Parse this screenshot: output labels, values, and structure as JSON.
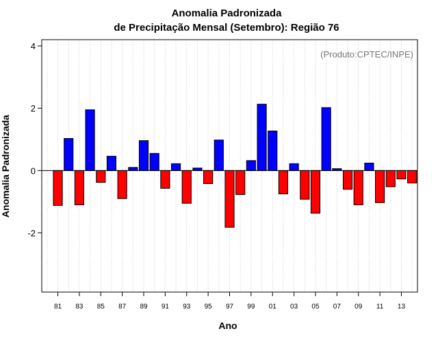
{
  "chart_data": {
    "type": "bar",
    "title": "Anomalia Padronizada",
    "subtitle": "de Precipitação Mensal (Setembro): Região 76",
    "xlabel": "Ano",
    "ylabel": "Anomalia Padronizada",
    "annotation": "(Produto:CPTEC/INPE)",
    "ylim": [
      -3.9,
      4.2
    ],
    "yticks": [
      -2,
      0,
      2,
      4
    ],
    "ytick_labels": [
      "-2",
      "0",
      "2",
      "4"
    ],
    "x_range": [
      1979.5,
      2014.5
    ],
    "x_tick_years": [
      1981,
      1983,
      1985,
      1987,
      1989,
      1991,
      1993,
      1995,
      1997,
      1999,
      2001,
      2003,
      2005,
      2007,
      2009,
      2011,
      2013
    ],
    "x_tick_labels": [
      "81",
      "83",
      "85",
      "87",
      "89",
      "91",
      "93",
      "95",
      "97",
      "99",
      "01",
      "03",
      "05",
      "07",
      "09",
      "11",
      "13"
    ],
    "grid": "vertical dotted",
    "colors": {
      "positive": "#0000ff",
      "negative": "#ff0000",
      "grid": "#c8c8c8",
      "annotation": "#777777"
    },
    "x": [
      1981,
      1982,
      1983,
      1984,
      1985,
      1986,
      1987,
      1988,
      1989,
      1990,
      1991,
      1992,
      1993,
      1994,
      1995,
      1996,
      1997,
      1998,
      1999,
      2000,
      2001,
      2002,
      2003,
      2004,
      2005,
      2006,
      2007,
      2008,
      2009,
      2010,
      2011,
      2012,
      2013,
      2014
    ],
    "values": [
      -1.12,
      1.03,
      -1.1,
      1.95,
      -0.38,
      0.46,
      -0.9,
      0.1,
      0.96,
      0.55,
      -0.57,
      0.22,
      -1.05,
      0.08,
      -0.42,
      0.98,
      -1.82,
      -0.77,
      0.32,
      2.13,
      1.27,
      -0.75,
      0.22,
      -0.92,
      -1.37,
      2.02,
      0.06,
      -0.6,
      -1.1,
      0.24,
      -1.03,
      -0.52,
      -0.27,
      -0.4
    ]
  }
}
